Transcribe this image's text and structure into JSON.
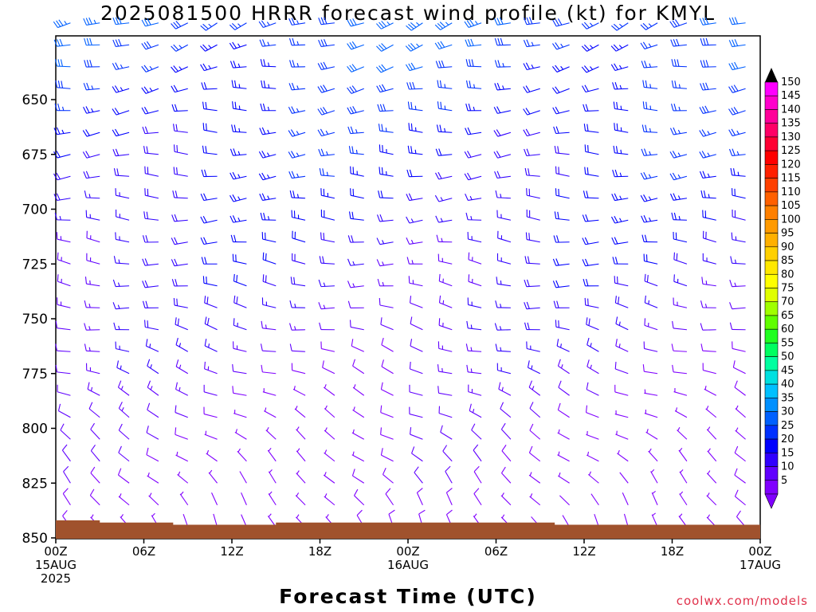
{
  "title": "2025081500 HRRR forecast wind profile (kt) for KMYL",
  "xlabel": "Forecast Time (UTC)",
  "credit": "coolwx.com/models",
  "chart_data": {
    "type": "wind_barbs",
    "y_ticks": [
      650,
      675,
      700,
      725,
      750,
      775,
      800,
      825,
      850
    ],
    "ylim": [
      850,
      610
    ],
    "x_ticks": [
      {
        "hour": 0,
        "lines": [
          "00Z",
          "15AUG",
          "2025"
        ]
      },
      {
        "hour": 6,
        "lines": [
          "06Z"
        ]
      },
      {
        "hour": 12,
        "lines": [
          "12Z"
        ]
      },
      {
        "hour": 18,
        "lines": [
          "18Z"
        ]
      },
      {
        "hour": 24,
        "lines": [
          "00Z",
          "16AUG"
        ]
      },
      {
        "hour": 30,
        "lines": [
          "06Z"
        ]
      },
      {
        "hour": 36,
        "lines": [
          "12Z"
        ]
      },
      {
        "hour": 42,
        "lines": [
          "18Z"
        ]
      },
      {
        "hour": 48,
        "lines": [
          "00Z",
          "17AUG"
        ]
      }
    ],
    "xlim": [
      0,
      48
    ],
    "levels_hpa": [
      615,
      625,
      635,
      645,
      655,
      665,
      675,
      685,
      695,
      705,
      715,
      725,
      735,
      745,
      755,
      765,
      775,
      785,
      795,
      805,
      815,
      825,
      835,
      845
    ],
    "times_hr": [
      1,
      3,
      5,
      7,
      9,
      11,
      13,
      15,
      17,
      19,
      21,
      23,
      25,
      27,
      29,
      31,
      33,
      35,
      37,
      39,
      41,
      43,
      45,
      47
    ],
    "colorbar": {
      "labels": [
        150,
        145,
        140,
        135,
        130,
        125,
        120,
        115,
        110,
        105,
        100,
        95,
        90,
        85,
        80,
        75,
        70,
        65,
        60,
        55,
        50,
        45,
        40,
        35,
        30,
        25,
        20,
        15,
        10,
        5
      ],
      "colors": [
        "#ff00ff",
        "#ff00cc",
        "#ff0099",
        "#ff0066",
        "#ff0033",
        "#ff0000",
        "#ff2000",
        "#ff4000",
        "#ff6000",
        "#ff8000",
        "#ff9a00",
        "#ffb000",
        "#ffd000",
        "#ffe800",
        "#ffff00",
        "#e0ff00",
        "#a0ff00",
        "#60ff00",
        "#20ff20",
        "#00ff60",
        "#00ffa0",
        "#00e0e0",
        "#00c0ff",
        "#0090ff",
        "#0060ff",
        "#0030ff",
        "#0000ff",
        "#3000ff",
        "#6000ff",
        "#8000ff"
      ]
    },
    "terrain_color": "#a0522d",
    "terrain_profile_hpa": [
      842,
      842,
      842,
      843,
      843,
      843,
      843,
      843,
      844,
      844,
      844,
      844,
      844,
      844,
      844,
      843,
      843,
      843,
      843,
      843,
      843,
      843,
      843,
      843,
      843,
      843,
      843,
      843,
      843,
      843,
      843,
      843,
      843,
      843,
      844,
      844,
      844,
      844,
      844,
      844,
      844,
      844,
      844,
      844,
      844,
      844,
      844,
      844,
      842
    ],
    "wind_profile": [
      {
        "p": 615,
        "dir": 250,
        "spd": 30
      },
      {
        "p": 650,
        "dir": 265,
        "spd": 25
      },
      {
        "p": 700,
        "dir": 270,
        "spd": 20
      },
      {
        "p": 750,
        "dir": 280,
        "spd": 15
      },
      {
        "p": 800,
        "dir": 300,
        "spd": 8
      },
      {
        "p": 845,
        "dir": 330,
        "spd": 5
      }
    ]
  }
}
